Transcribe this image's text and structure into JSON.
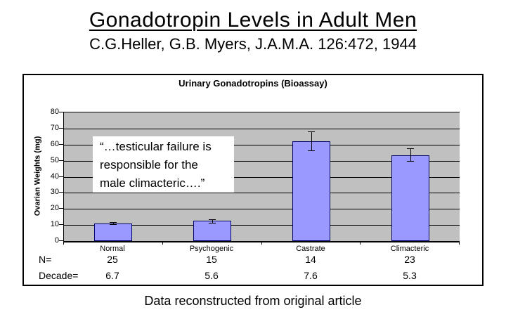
{
  "page": {
    "title": "Gonadotropin Levels in Adult Men",
    "subtitle": "C.G.Heller, G.B. Myers, J.A.M.A. 126:472, 1944",
    "caption": "Data reconstructed from original article"
  },
  "chart_data": {
    "type": "bar",
    "title": "Urinary Gonadotropins (Bioassay)",
    "ylabel": "Ovarian Weights (mg)",
    "xlabel": "",
    "ylim": [
      0,
      80
    ],
    "yticks": [
      0,
      10,
      20,
      30,
      40,
      50,
      60,
      70,
      80
    ],
    "grid": true,
    "legend": false,
    "categories": [
      "Normal",
      "Psychogenic",
      "Castrate",
      "Climacteric"
    ],
    "values": [
      11,
      12.5,
      62,
      53.5
    ],
    "errors": [
      0.7,
      1,
      6,
      4
    ],
    "rows": [
      {
        "label": "N=",
        "values": [
          "25",
          "15",
          "14",
          "23"
        ]
      },
      {
        "label": "Decade=",
        "values": [
          "6.7",
          "5.6",
          "7.6",
          "5.3"
        ]
      }
    ],
    "annotation": "“…testicular failure is responsible for the male climacteric….”",
    "annotation_lines": [
      "“…testicular failure is",
      "responsible for the",
      "male climacteric….”"
    ],
    "colors": {
      "bar_fill": "#9999FF",
      "bar_border": "#000066",
      "plot_bg": "#C0C0C0",
      "gridline": "#000000",
      "text": "#000000"
    }
  }
}
